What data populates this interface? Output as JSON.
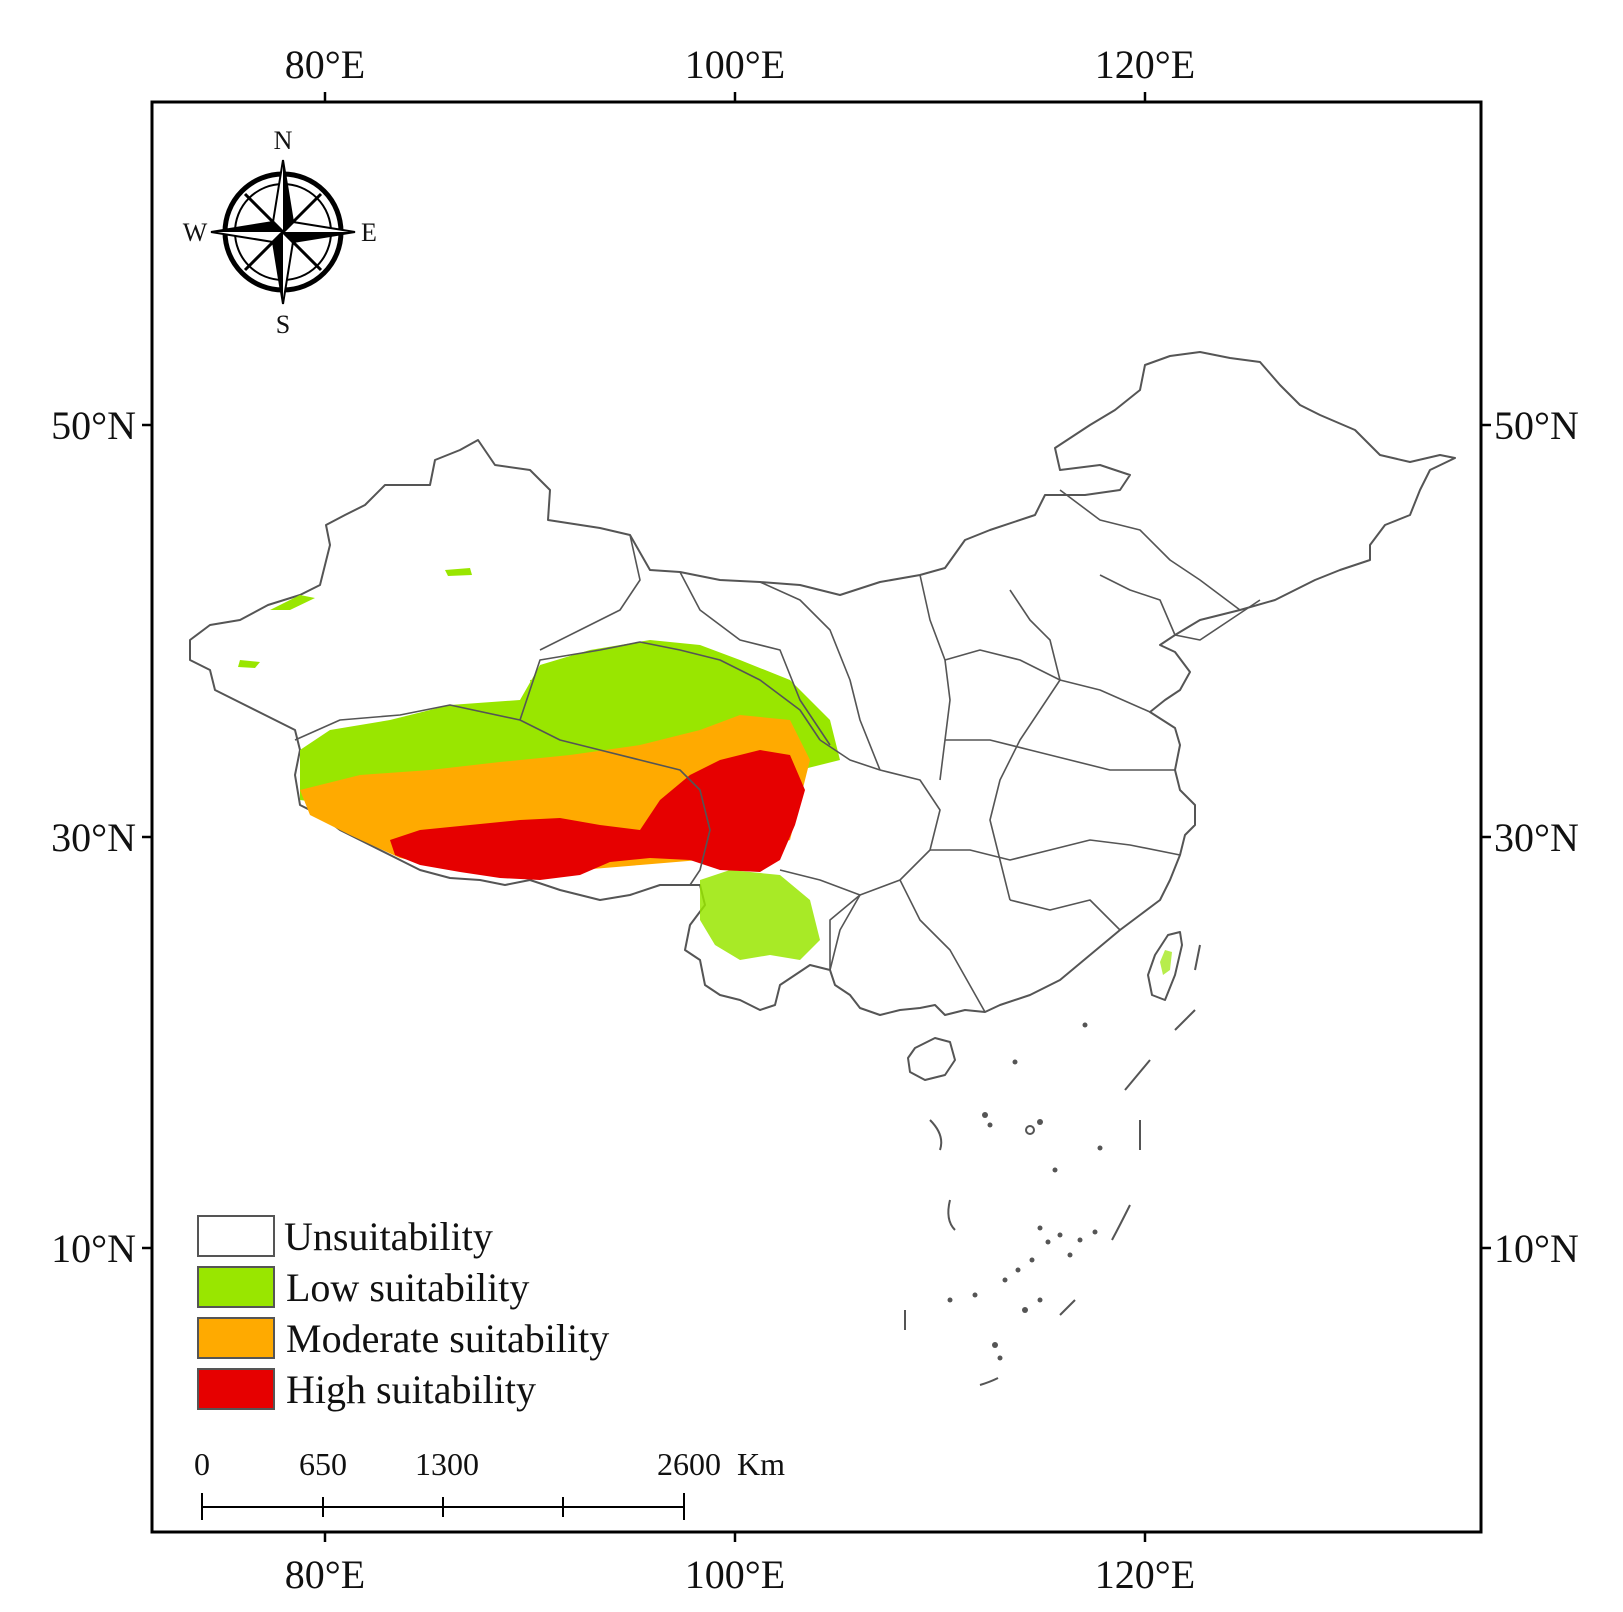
{
  "axes": {
    "lon_ticks": [
      "80°E",
      "100°E",
      "120°E"
    ],
    "lat_ticks": [
      "50°N",
      "30°N",
      "10°N"
    ]
  },
  "compass": {
    "n": "N",
    "s": "S",
    "e": "E",
    "w": "W"
  },
  "legend": {
    "items": [
      {
        "label": "Unsuitability",
        "color": "#ffffff"
      },
      {
        "label": "Low suitability",
        "color": "#99e600"
      },
      {
        "label": "Moderate suitability",
        "color": "#ffaa00"
      },
      {
        "label": "High suitability",
        "color": "#e60000"
      }
    ]
  },
  "scale_bar": {
    "labels": [
      "0",
      "650",
      "1300",
      "2600"
    ],
    "unit": "Km"
  },
  "colors": {
    "boundary": "#555555",
    "frame": "#000000",
    "low": "#99e600",
    "moderate": "#ffaa00",
    "high": "#e60000"
  }
}
